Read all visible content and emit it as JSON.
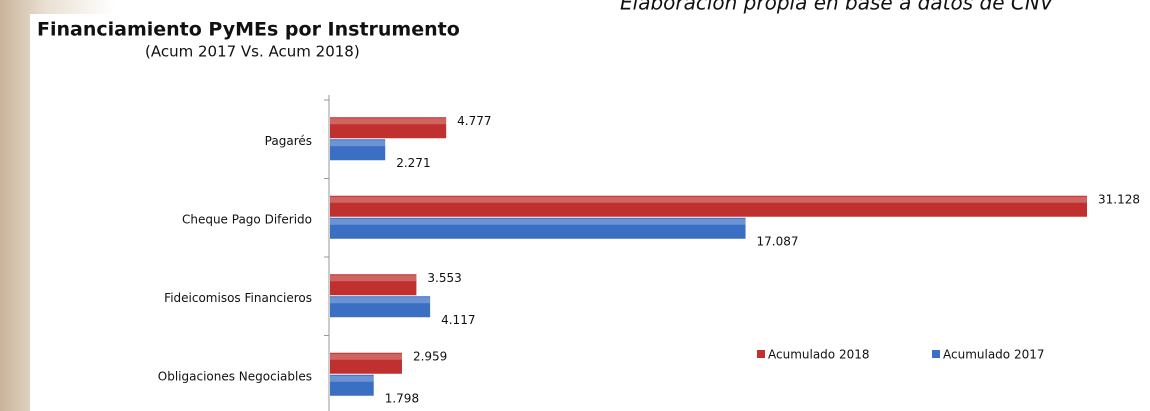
{
  "chart_data": {
    "type": "hbar",
    "title": "Financiamiento PyMEs por Instrumento",
    "subtitle": "(Acum 2017 Vs. Acum 2018)",
    "source": "Elaboración propia en base a datos de CNV",
    "categories": [
      "Pagarés",
      "Cheque Pago Diferido",
      "Fideicomisos Financieros",
      "Obligaciones Negociables"
    ],
    "series": [
      {
        "name": "Acumulado 2018",
        "color": "#c0302f",
        "values": [
          4.777,
          31.128,
          3.553,
          2.959
        ]
      },
      {
        "name": "Acumulado 2017",
        "color": "#3b6fc4",
        "values": [
          2.271,
          17.087,
          4.117,
          1.798
        ]
      }
    ],
    "legend": "bottom-right"
  }
}
